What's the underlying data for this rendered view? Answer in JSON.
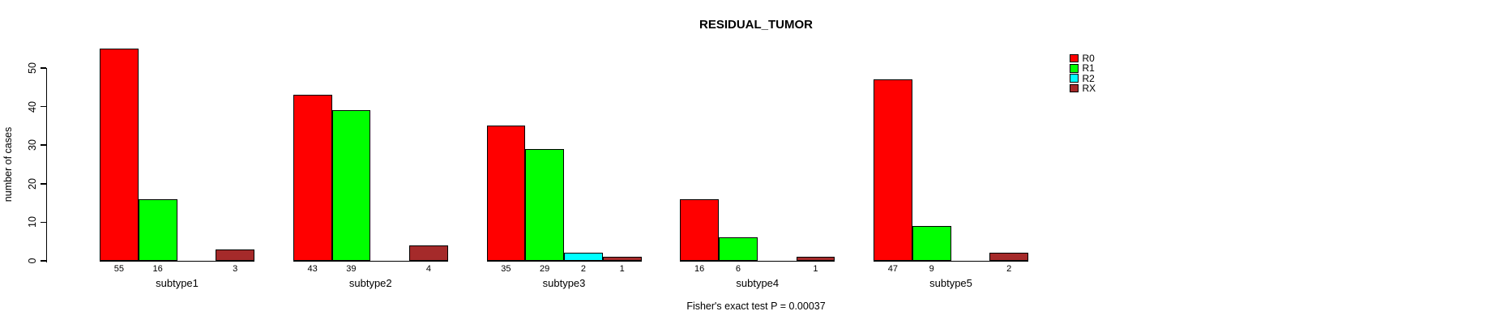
{
  "chart_data": {
    "type": "bar",
    "title": "RESIDUAL_TUMOR",
    "ylabel": "number of cases",
    "xlabel": "",
    "annotation": "Fisher's exact test P = 0.00037",
    "categories": [
      "subtype1",
      "subtype2",
      "subtype3",
      "subtype4",
      "subtype5"
    ],
    "series": [
      {
        "name": "R0",
        "color": "#ff0000",
        "values": [
          55,
          43,
          35,
          16,
          47
        ]
      },
      {
        "name": "R1",
        "color": "#00ff00",
        "values": [
          16,
          39,
          29,
          6,
          9
        ]
      },
      {
        "name": "R2",
        "color": "#00ffff",
        "values": [
          0,
          0,
          2,
          0,
          0
        ]
      },
      {
        "name": "RX",
        "color": "#a52a2a",
        "values": [
          3,
          4,
          1,
          1,
          2
        ]
      }
    ],
    "bar_value_labels_shown": true,
    "yticks": [
      0,
      10,
      20,
      30,
      40,
      50
    ],
    "ylim": [
      0,
      55
    ],
    "grid": false,
    "legend_position": "right-top",
    "axis_color": "#000000",
    "text_color": "#000000",
    "background_color": "#ffffff"
  }
}
